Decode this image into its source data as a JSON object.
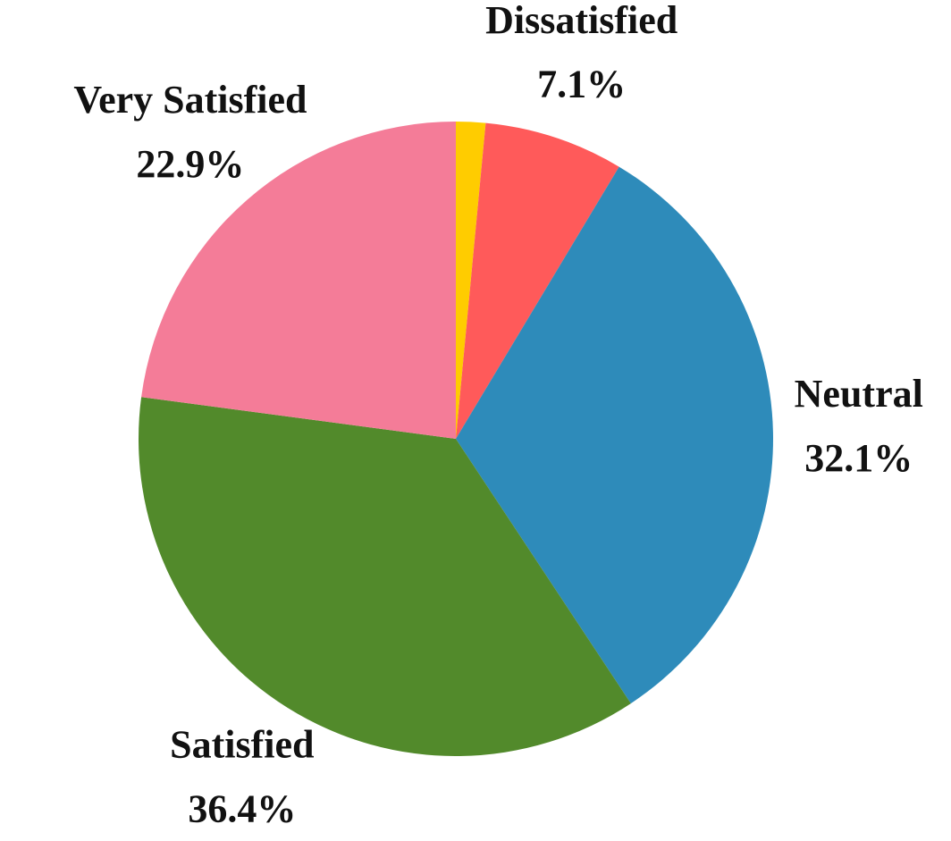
{
  "chart_data": {
    "type": "pie",
    "categories": [
      null,
      "Dissatisfied",
      "Neutral",
      "Satisfied",
      "Very Satisfied"
    ],
    "values": [
      1.5,
      7.1,
      32.1,
      36.4,
      22.9
    ],
    "value_labels": [
      null,
      "7.1%",
      "32.1%",
      "36.4%",
      "22.9%"
    ],
    "colors": [
      "#ffcc00",
      "#ff5a5a",
      "#2e8bba",
      "#528a2b",
      "#f47c98"
    ]
  }
}
